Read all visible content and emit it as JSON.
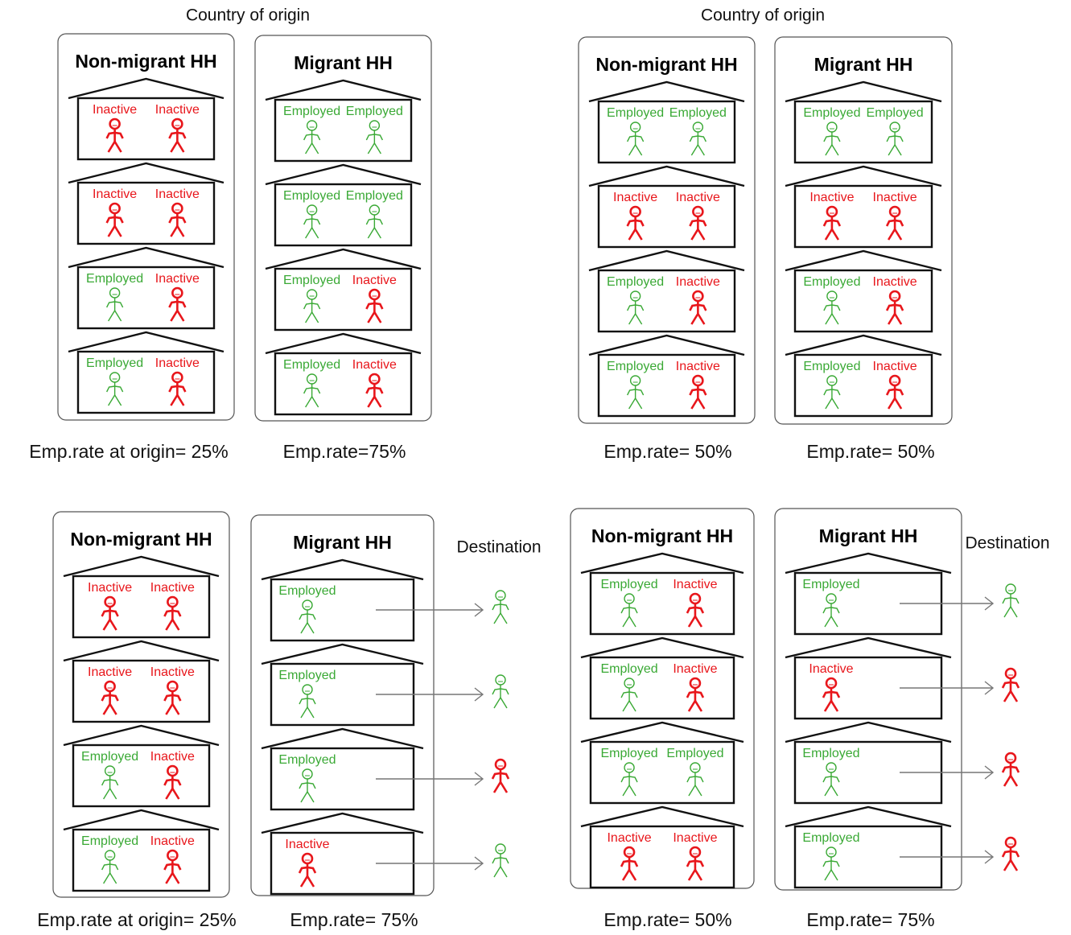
{
  "panels": [
    {
      "header": "Country of origin",
      "groups": [
        {
          "title": "Non-migrant HH",
          "caption": "Emp.rate at origin= 25%",
          "houses": [
            [
              {
                "label": "Inactive",
                "color": "#e8161b"
              },
              {
                "label": "Inactive",
                "color": "#e8161b"
              }
            ],
            [
              {
                "label": "Inactive",
                "color": "#e8161b"
              },
              {
                "label": "Inactive",
                "color": "#e8161b"
              }
            ],
            [
              {
                "label": "Employed",
                "color": "#3aa935"
              },
              {
                "label": "Inactive",
                "color": "#e8161b"
              }
            ],
            [
              {
                "label": "Employed",
                "color": "#3aa935"
              },
              {
                "label": "Inactive",
                "color": "#e8161b"
              }
            ]
          ]
        },
        {
          "title": "Migrant HH",
          "caption": "Emp.rate=75%",
          "houses": [
            [
              {
                "label": "Employed",
                "color": "#3aa935"
              },
              {
                "label": "Employed",
                "color": "#3aa935"
              }
            ],
            [
              {
                "label": "Employed",
                "color": "#3aa935"
              },
              {
                "label": "Employed",
                "color": "#3aa935"
              }
            ],
            [
              {
                "label": "Employed",
                "color": "#3aa935"
              },
              {
                "label": "Inactive",
                "color": "#e8161b"
              }
            ],
            [
              {
                "label": "Employed",
                "color": "#3aa935"
              },
              {
                "label": "Inactive",
                "color": "#e8161b"
              }
            ]
          ]
        }
      ]
    },
    {
      "header": "Country of origin",
      "groups": [
        {
          "title": "Non-migrant HH",
          "caption": "Emp.rate= 50%",
          "houses": [
            [
              {
                "label": "Employed",
                "color": "#3aa935"
              },
              {
                "label": "Employed",
                "color": "#3aa935"
              }
            ],
            [
              {
                "label": "Inactive",
                "color": "#e8161b"
              },
              {
                "label": "Inactive",
                "color": "#e8161b"
              }
            ],
            [
              {
                "label": "Employed",
                "color": "#3aa935"
              },
              {
                "label": "Inactive",
                "color": "#e8161b"
              }
            ],
            [
              {
                "label": "Employed",
                "color": "#3aa935"
              },
              {
                "label": "Inactive",
                "color": "#e8161b"
              }
            ]
          ]
        },
        {
          "title": "Migrant HH",
          "caption": "Emp.rate= 50%",
          "houses": [
            [
              {
                "label": "Employed",
                "color": "#3aa935"
              },
              {
                "label": "Employed",
                "color": "#3aa935"
              }
            ],
            [
              {
                "label": "Inactive",
                "color": "#e8161b"
              },
              {
                "label": "Inactive",
                "color": "#e8161b"
              }
            ],
            [
              {
                "label": "Employed",
                "color": "#3aa935"
              },
              {
                "label": "Inactive",
                "color": "#e8161b"
              }
            ],
            [
              {
                "label": "Employed",
                "color": "#3aa935"
              },
              {
                "label": "Inactive",
                "color": "#e8161b"
              }
            ]
          ]
        }
      ]
    },
    {
      "groups": [
        {
          "title": "Non-migrant HH",
          "caption": "Emp.rate at origin= 25%",
          "houses": [
            [
              {
                "label": "Inactive",
                "color": "#e8161b"
              },
              {
                "label": "Inactive",
                "color": "#e8161b"
              }
            ],
            [
              {
                "label": "Inactive",
                "color": "#e8161b"
              },
              {
                "label": "Inactive",
                "color": "#e8161b"
              }
            ],
            [
              {
                "label": "Employed",
                "color": "#3aa935"
              },
              {
                "label": "Inactive",
                "color": "#e8161b"
              }
            ],
            [
              {
                "label": "Employed",
                "color": "#3aa935"
              },
              {
                "label": "Inactive",
                "color": "#e8161b"
              }
            ]
          ]
        },
        {
          "title": "Migrant HH",
          "caption": "Emp.rate= 75%",
          "houses": [
            [
              {
                "label": "Employed",
                "color": "#3aa935"
              }
            ],
            [
              {
                "label": "Employed",
                "color": "#3aa935"
              }
            ],
            [
              {
                "label": "Employed",
                "color": "#3aa935"
              }
            ],
            [
              {
                "label": "Inactive",
                "color": "#e8161b"
              }
            ]
          ]
        }
      ],
      "destination": {
        "label": "Destination",
        "people": [
          "#3aa935",
          "#3aa935",
          "#e8161b",
          "#3aa935"
        ]
      }
    },
    {
      "groups": [
        {
          "title": "Non-migrant HH",
          "caption": "Emp.rate= 50%",
          "houses": [
            [
              {
                "label": "Employed",
                "color": "#3aa935"
              },
              {
                "label": "Inactive",
                "color": "#e8161b"
              }
            ],
            [
              {
                "label": "Employed",
                "color": "#3aa935"
              },
              {
                "label": "Inactive",
                "color": "#e8161b"
              }
            ],
            [
              {
                "label": "Employed",
                "color": "#3aa935"
              },
              {
                "label": "Employed",
                "color": "#3aa935"
              }
            ],
            [
              {
                "label": "Inactive",
                "color": "#e8161b"
              },
              {
                "label": "Inactive",
                "color": "#e8161b"
              }
            ]
          ]
        },
        {
          "title": "Migrant HH",
          "caption": "Emp.rate= 75%",
          "houses": [
            [
              {
                "label": "Employed",
                "color": "#3aa935"
              }
            ],
            [
              {
                "label": "Inactive",
                "color": "#e8161b"
              }
            ],
            [
              {
                "label": "Employed",
                "color": "#3aa935"
              }
            ],
            [
              {
                "label": "Employed",
                "color": "#3aa935"
              }
            ]
          ]
        }
      ],
      "destination": {
        "label": "Destination",
        "people": [
          "#3aa935",
          "#e8161b",
          "#e8161b",
          "#e8161b"
        ]
      }
    }
  ]
}
